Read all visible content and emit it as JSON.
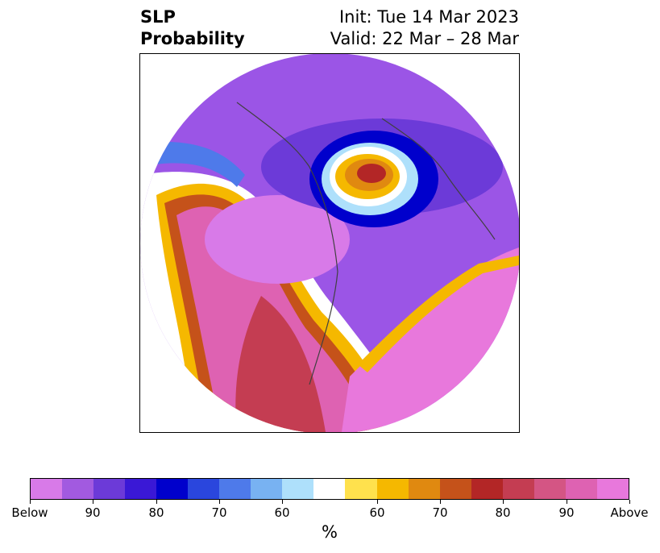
{
  "title": {
    "left_line1": "SLP",
    "left_line2": "Probability",
    "right_line1": "Init: Tue 14 Mar 2023",
    "right_line2": "Valid: 22 Mar – 28 Mar"
  },
  "map": {
    "projection": "north-polar-stereographic",
    "field": "SLP probability",
    "coastline_color": "#404040",
    "features": [
      {
        "name": "high-probability-core-north-america",
        "category": "Above",
        "percent": 90
      },
      {
        "name": "above-north-pacific",
        "category": "Above",
        "percent": 70
      },
      {
        "name": "above-north-atlantic",
        "category": "Above",
        "percent": 80
      },
      {
        "name": "below-arctic-siberia",
        "category": "Below",
        "percent": 90
      },
      {
        "name": "above-greenland-north-atlantic-high",
        "category": "Above",
        "percent": 80
      }
    ]
  },
  "colorbar": {
    "colors": [
      "#d87ae8",
      "#a25ae0",
      "#6c3ad8",
      "#3a18d6",
      "#0000cc",
      "#2a46dd",
      "#4e7aea",
      "#78b2f2",
      "#aee0fb",
      "#ffffff",
      "#ffe14d",
      "#f5b800",
      "#e08910",
      "#c5521a",
      "#b32626",
      "#c43d52",
      "#d45584",
      "#de62b2",
      "#e878dc"
    ],
    "tick_labels": [
      "Below",
      "90",
      "80",
      "70",
      "60",
      "60",
      "70",
      "80",
      "90",
      "Above"
    ],
    "units": "%"
  }
}
